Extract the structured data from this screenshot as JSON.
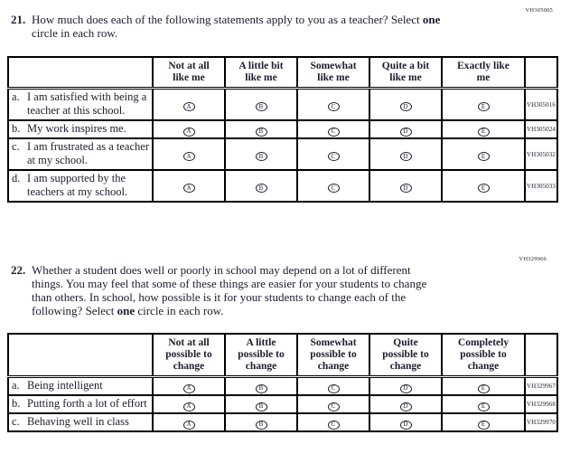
{
  "page": {
    "q21_code": "VH305005",
    "q22_code": "VH329966",
    "option_letters": [
      "A",
      "B",
      "C",
      "D",
      "E"
    ]
  },
  "q21": {
    "number": "21.",
    "text_before": "How much does each of the following statements apply to you as a teacher? Select ",
    "bold": "one",
    "text_after": "\ncircle in each row."
  },
  "q22": {
    "number": "22.",
    "text_before": "Whether a student does well or poorly in school may depend on a lot of different\nthings. You may feel that some of these things are easier for your students to change\nthan others. In school, how possible is it for your students to change each of the\nfollowing? Select ",
    "bold": "one",
    "text_after": " circle in each row."
  },
  "table1": {
    "column_headers": [
      "Not at all\nlike me",
      "A little bit\nlike me",
      "Somewhat\nlike me",
      "Quite a bit\nlike me",
      "Exactly like\nme"
    ],
    "rows": [
      {
        "letter": "a.",
        "text": "I am satisfied with being a teacher at this school.",
        "code": "VH305016"
      },
      {
        "letter": "b.",
        "text": "My work inspires me.",
        "code": "VH305024"
      },
      {
        "letter": "c.",
        "text": "I am frustrated as a teacher at my school.",
        "code": "VH305032"
      },
      {
        "letter": "d.",
        "text": "I am supported by the teachers at my school.",
        "code": "VH305033"
      }
    ]
  },
  "table2": {
    "column_headers": [
      "Not at all\npossible to\nchange",
      "A little\npossible to\nchange",
      "Somewhat\npossible to\nchange",
      "Quite\npossible to\nchange",
      "Completely\npossible to\nchange"
    ],
    "rows": [
      {
        "letter": "a.",
        "text": "Being intelligent",
        "code": "VH329967"
      },
      {
        "letter": "b.",
        "text": "Putting forth a lot of effort",
        "code": "VH329968"
      },
      {
        "letter": "c.",
        "text": "Behaving well in class",
        "code": "VH329970"
      }
    ]
  }
}
